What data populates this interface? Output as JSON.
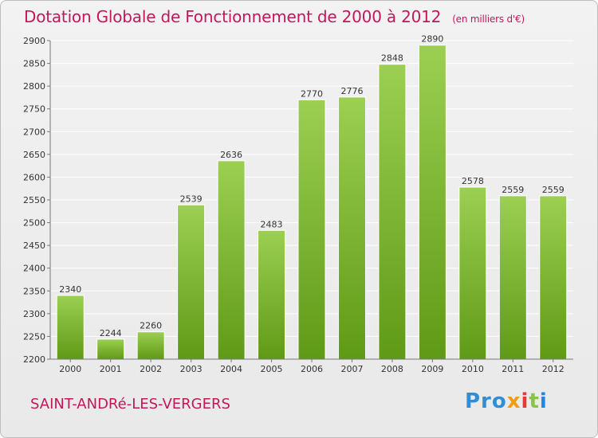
{
  "title": "Dotation Globale de Fonctionnement de 2000 à 2012",
  "unit": "(en milliers d'€)",
  "commune": "SAINT-ANDRé-LES-VERGERS",
  "logo": {
    "text": "Proxiti",
    "parts": [
      "Pro",
      "x",
      "i",
      "t",
      "i"
    ]
  },
  "colors": {
    "title": "#c2185b",
    "bar_top": "#9ccf52",
    "bar_bottom": "#5f9a16",
    "grid": "#ffffff",
    "background": "#ececec"
  },
  "chart_data": {
    "type": "bar",
    "categories": [
      "2000",
      "2001",
      "2002",
      "2003",
      "2004",
      "2005",
      "2006",
      "2007",
      "2008",
      "2009",
      "2010",
      "2011",
      "2012"
    ],
    "values": [
      2340,
      2244,
      2260,
      2539,
      2636,
      2483,
      2770,
      2776,
      2848,
      2890,
      2578,
      2559,
      2559
    ],
    "ylim": [
      2200,
      2900
    ],
    "yticks": [
      2200,
      2250,
      2300,
      2350,
      2400,
      2450,
      2500,
      2550,
      2600,
      2650,
      2700,
      2750,
      2800,
      2850,
      2900
    ],
    "grid": true,
    "legend": "none"
  }
}
